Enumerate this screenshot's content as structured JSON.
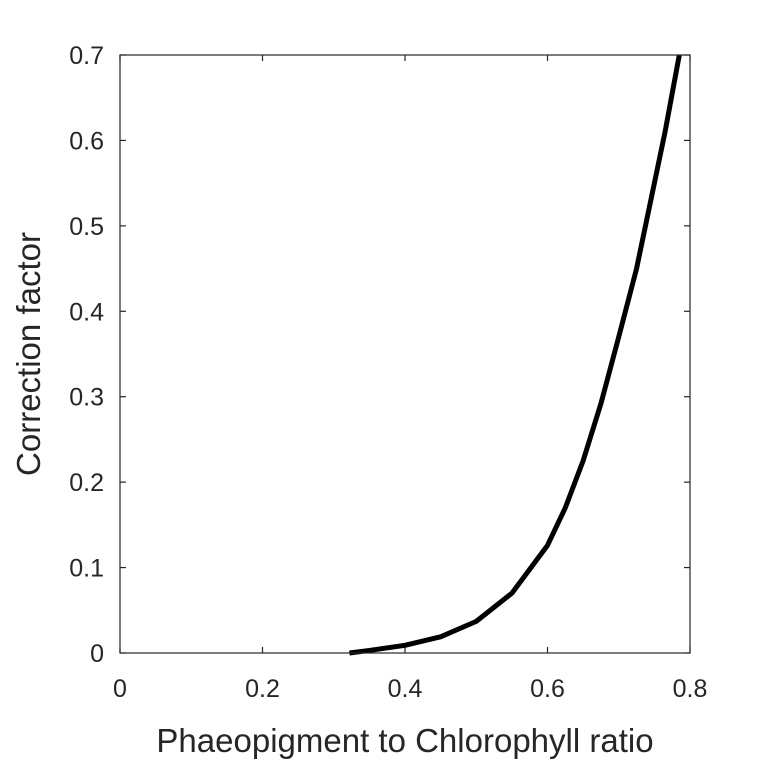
{
  "chart_data": {
    "type": "line",
    "title": "",
    "xlabel": "Phaeopigment to Chlorophyll ratio",
    "ylabel": "Correction factor",
    "xlim": [
      0,
      0.8
    ],
    "ylim": [
      0,
      0.7
    ],
    "xticks": [
      0,
      0.2,
      0.4,
      0.6,
      0.8
    ],
    "xtick_labels": [
      "0",
      "0.2",
      "0.4",
      "0.6",
      "0.8"
    ],
    "yticks": [
      0,
      0.1,
      0.2,
      0.3,
      0.4,
      0.5,
      0.6,
      0.7
    ],
    "ytick_labels": [
      "0",
      "0.1",
      "0.2",
      "0.3",
      "0.4",
      "0.5",
      "0.6",
      "0.7"
    ],
    "grid": false,
    "box": true,
    "series": [
      {
        "color": "#000000",
        "x": [
          0.322,
          0.35,
          0.4,
          0.45,
          0.5,
          0.55,
          0.6,
          0.625,
          0.65,
          0.675,
          0.7,
          0.725,
          0.75,
          0.765,
          0.785
        ],
        "y": [
          0.0,
          0.003,
          0.009,
          0.019,
          0.037,
          0.07,
          0.126,
          0.17,
          0.225,
          0.292,
          0.37,
          0.45,
          0.55,
          0.61,
          0.7
        ]
      }
    ]
  }
}
